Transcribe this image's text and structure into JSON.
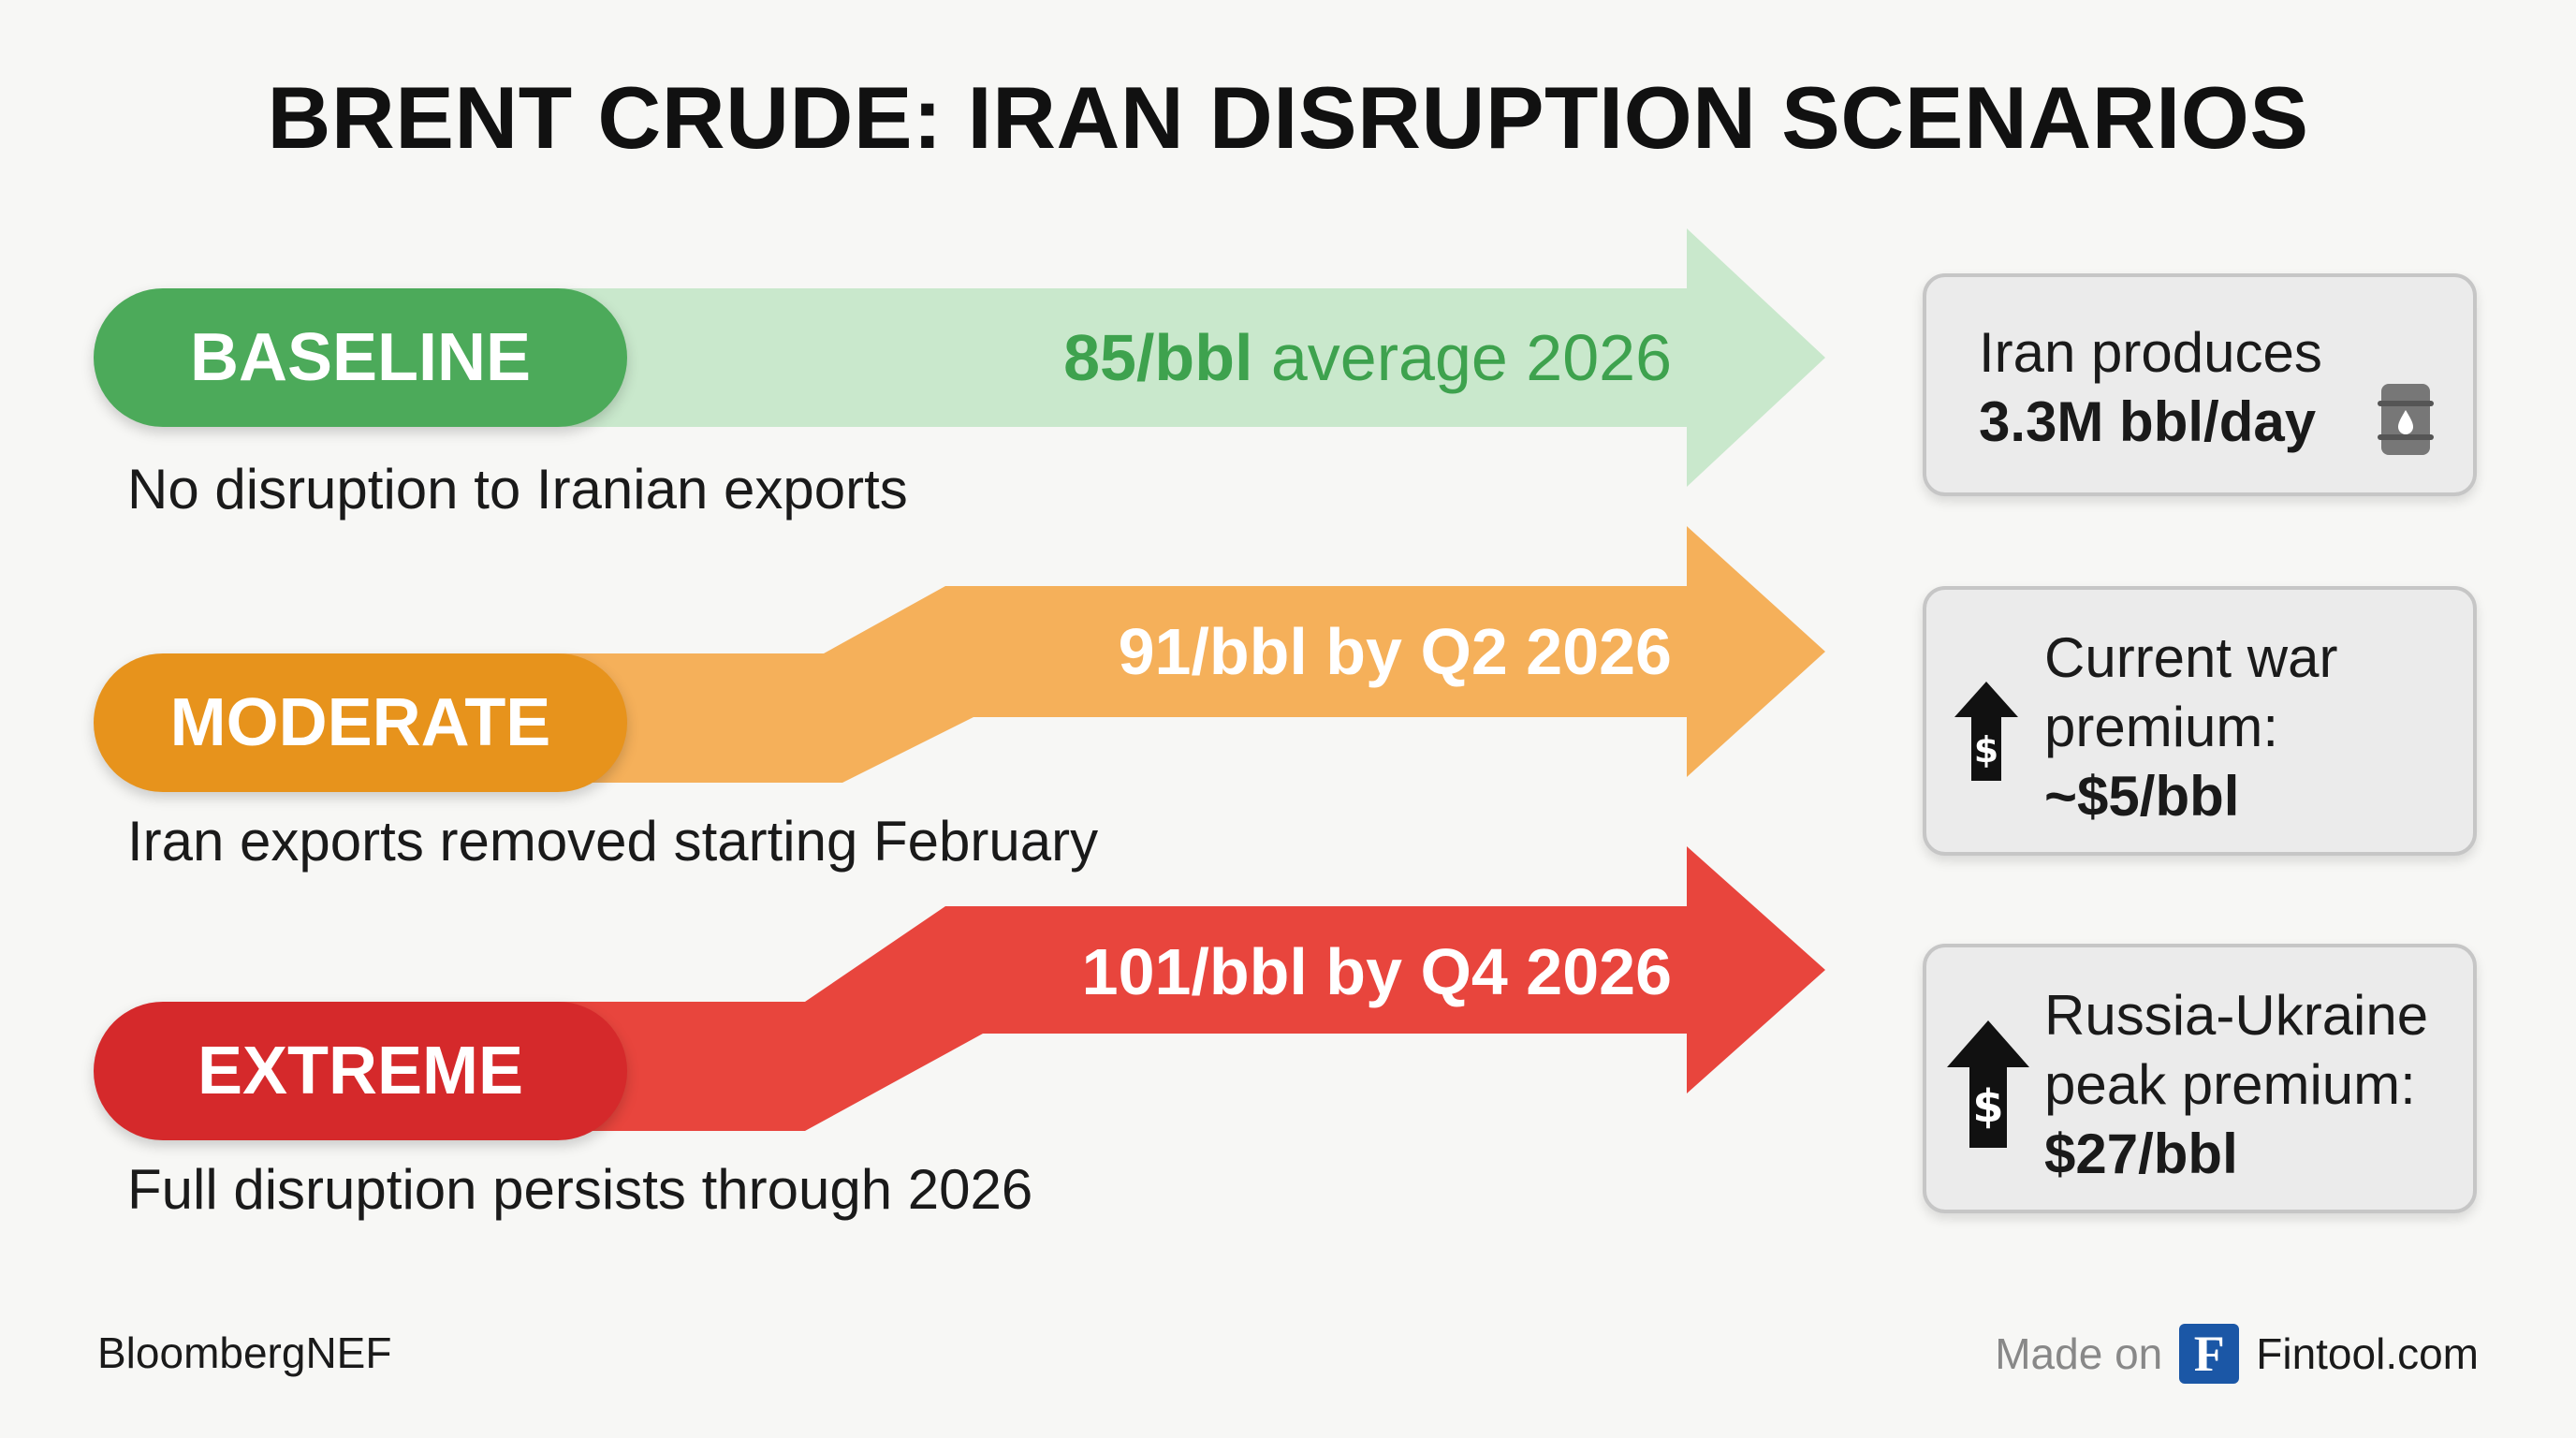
{
  "title": "BRENT CRUDE: IRAN DISRUPTION SCENARIOS",
  "scenarios": [
    {
      "label": "BASELINE",
      "price": "85/bbl",
      "price_rest": "average 2026",
      "description": "No disruption to Iranian exports",
      "color": "#4caa5a",
      "arrow_color": "#c9e8cc"
    },
    {
      "label": "MODERATE",
      "price": "91/bbl by Q2 2026",
      "description": "Iran exports removed starting February",
      "color": "#e7931c",
      "arrow_color": "#f5b05a"
    },
    {
      "label": "EXTREME",
      "price": "101/bbl by Q4 2026",
      "description": "Full disruption persists through 2026",
      "color": "#d5292b",
      "arrow_color": "#e8453d"
    }
  ],
  "cards": [
    {
      "line1": "Iran produces",
      "value": "3.3M bbl/day",
      "icon": "oil-barrel-icon"
    },
    {
      "line1": "Current war",
      "line2": "premium:",
      "value": "~$5/bbl",
      "icon": "dollar-up-arrow-icon"
    },
    {
      "line1": "Russia-Ukraine",
      "line2": "peak premium:",
      "value": "$27/bbl",
      "icon": "dollar-up-arrow-icon"
    }
  ],
  "footer": {
    "source": "BloombergNEF",
    "made_on": "Made on",
    "logo_letter": "F",
    "brand": "Fintool.com"
  }
}
